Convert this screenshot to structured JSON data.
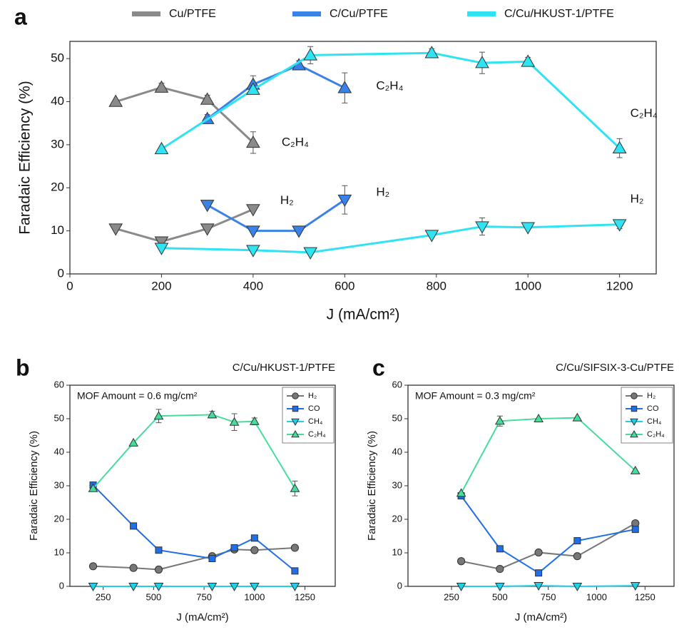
{
  "chart_data": [
    {
      "type": "line",
      "panel_label": "a",
      "xlabel": "J (mA/cm²)",
      "ylabel": "Faradaic Efficiency (%)",
      "xlim": [
        0,
        1280
      ],
      "xticks": [
        0,
        200,
        400,
        600,
        800,
        1000,
        1200
      ],
      "ylim": [
        0,
        54
      ],
      "yticks": [
        0,
        10,
        20,
        30,
        40,
        50
      ],
      "legend": "top",
      "series": [
        {
          "name": "Cu/PTFE",
          "color": "#8a8a8a",
          "x": [
            100,
            200,
            300,
            400
          ],
          "products": [
            {
              "label": "C₂H₄",
              "marker": "triangle-up",
              "values": [
                40,
                43.3,
                40.5,
                30.5
              ],
              "errors": [
                null,
                1,
                1,
                2.5
              ]
            },
            {
              "label": "H₂",
              "marker": "triangle-down",
              "values": [
                10.5,
                7.5,
                10.5,
                15
              ],
              "errors": [
                null,
                null,
                null,
                null
              ]
            }
          ]
        },
        {
          "name": "C/Cu/PTFE",
          "color": "#3b82e8",
          "x": [
            300,
            400,
            500,
            600
          ],
          "products": [
            {
              "label": "C₂H₄",
              "marker": "triangle-up",
              "values": [
                36,
                44,
                48.5,
                43.2
              ],
              "errors": [
                1,
                2,
                1,
                3.5
              ]
            },
            {
              "label": "H₂",
              "marker": "triangle-down",
              "values": [
                16,
                10,
                10,
                17.2
              ],
              "errors": [
                null,
                null,
                null,
                3.3
              ]
            }
          ]
        },
        {
          "name": "C/Cu/HKUST-1/PTFE",
          "color": "#2fe3f3",
          "x": [
            200,
            400,
            525,
            790,
            900,
            1000,
            1200
          ],
          "products": [
            {
              "label": "C₂H₄",
              "marker": "triangle-up",
              "values": [
                29,
                42.8,
                50.8,
                51.3,
                49,
                49.3,
                29.2
              ],
              "errors": [
                null,
                1,
                2,
                1,
                2.5,
                1,
                2.2
              ]
            },
            {
              "label": "H₂",
              "marker": "triangle-down",
              "values": [
                6,
                5.5,
                5,
                9,
                11,
                10.8,
                11.5
              ],
              "errors": [
                null,
                null,
                null,
                null,
                2,
                null,
                1
              ]
            }
          ]
        }
      ]
    },
    {
      "type": "line",
      "panel_label": "b",
      "title": "C/Cu/HKUST-1/PTFE",
      "annotation": "MOF Amount = 0.6 mg/cm²",
      "xlabel": "J (mA/cm²)",
      "ylabel": "Faradaic Efficiency (%)",
      "xlim": [
        85,
        1400
      ],
      "xticks": [
        250,
        500,
        750,
        1000,
        1250
      ],
      "ylim": [
        0,
        60
      ],
      "yticks": [
        0,
        10,
        20,
        30,
        40,
        50,
        60
      ],
      "legend": "upper right",
      "x": [
        200,
        400,
        525,
        790,
        900,
        1000,
        1200
      ],
      "series": [
        {
          "name": "H₂",
          "color": "#777777",
          "marker": "circle",
          "values": [
            6,
            5.5,
            5,
            9,
            11,
            10.8,
            11.5
          ]
        },
        {
          "name": "CO",
          "color": "#1f6fe8",
          "marker": "square",
          "values": [
            30.2,
            18,
            10.8,
            8.3,
            11.5,
            14.4,
            4.6
          ]
        },
        {
          "name": "CH₄",
          "color": "#22cfe8",
          "marker": "triangle-down",
          "values": [
            0,
            0,
            0,
            0,
            0,
            0,
            0
          ]
        },
        {
          "name": "C₂H₄",
          "color": "#45dc9c",
          "marker": "triangle-up",
          "values": [
            29.2,
            42.8,
            50.8,
            51.2,
            49,
            49.2,
            29.2
          ],
          "errors": [
            null,
            null,
            2,
            1,
            2.5,
            1,
            2.2
          ]
        }
      ]
    },
    {
      "type": "line",
      "panel_label": "c",
      "title": "C/Cu/SIFSIX-3-Cu/PTFE",
      "annotation": "MOF Amount = 0.3 mg/cm²",
      "xlabel": "J (mA/cm²)",
      "ylabel": "Faradaic Efficiency (%)",
      "xlim": [
        25,
        1400
      ],
      "xticks": [
        250,
        500,
        750,
        1000,
        1250
      ],
      "ylim": [
        0,
        60
      ],
      "yticks": [
        0,
        10,
        20,
        30,
        40,
        50,
        60
      ],
      "legend": "upper right",
      "x": [
        300,
        500,
        700,
        900,
        1200
      ],
      "series": [
        {
          "name": "H₂",
          "color": "#777777",
          "marker": "circle",
          "values": [
            7.5,
            5.2,
            10.1,
            9,
            18.8
          ]
        },
        {
          "name": "CO",
          "color": "#1f6fe8",
          "marker": "square",
          "values": [
            27,
            11.2,
            4,
            13.6,
            17
          ]
        },
        {
          "name": "CH₄",
          "color": "#22cfe8",
          "marker": "triangle-down",
          "values": [
            0,
            0,
            0.2,
            0,
            0.2
          ]
        },
        {
          "name": "C₂H₄",
          "color": "#45dc9c",
          "marker": "triangle-up",
          "values": [
            27.8,
            49.3,
            50,
            50.3,
            34.5
          ],
          "errors": [
            null,
            1.5,
            null,
            null,
            null
          ]
        }
      ]
    }
  ]
}
